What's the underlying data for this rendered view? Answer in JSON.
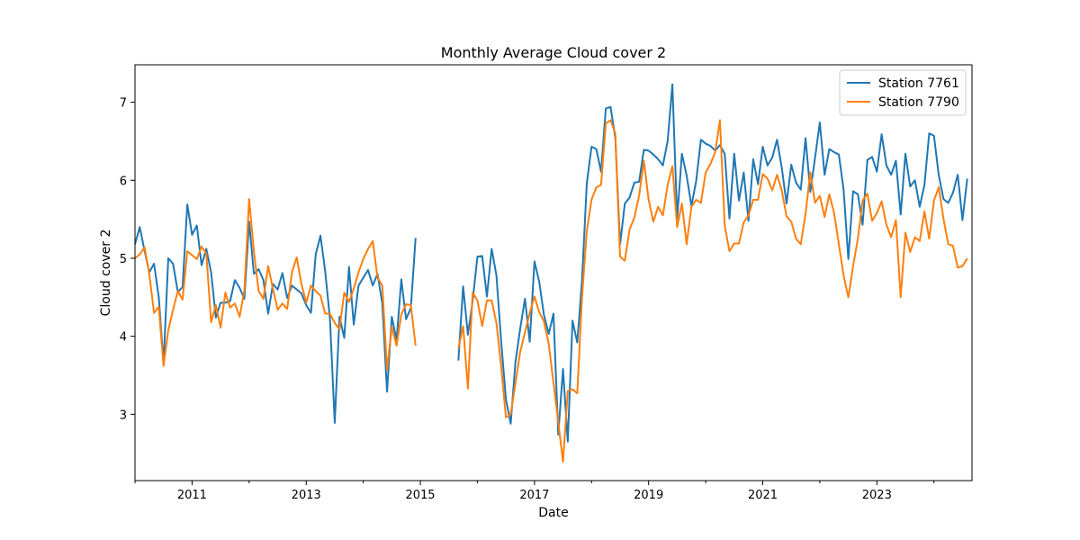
{
  "chart_data": {
    "type": "line",
    "title": "Monthly Average Cloud cover 2",
    "xlabel": "Date",
    "ylabel": "Cloud cover 2",
    "xlim": [
      "2010-01",
      "2024-09"
    ],
    "ylim": [
      2.15,
      7.48
    ],
    "x_ticks": [
      "2011",
      "2013",
      "2015",
      "2017",
      "2019",
      "2021",
      "2023"
    ],
    "y_ticks": [
      "3",
      "4",
      "5",
      "6",
      "7"
    ],
    "legend": {
      "position": "top-right"
    },
    "grid": false,
    "series": [
      {
        "name": "Station 7761",
        "color": "#1f77b4",
        "segments": [
          {
            "start": "2010-01",
            "values": [
              5.18,
              5.4,
              5.1,
              4.82,
              4.93,
              4.5,
              3.65,
              5.0,
              4.93,
              4.57,
              4.63,
              5.69,
              5.3,
              5.42,
              4.91,
              5.12,
              4.82,
              4.24,
              4.43,
              4.43,
              4.45,
              4.72,
              4.62,
              4.48,
              5.47,
              4.8,
              4.86,
              4.72,
              4.29,
              4.67,
              4.6,
              4.81,
              4.49,
              4.65,
              4.6,
              4.55,
              4.4,
              4.3,
              5.05,
              5.29,
              4.83,
              4.22,
              2.89,
              4.25,
              3.98,
              4.89,
              4.15,
              4.65,
              4.75,
              4.85,
              4.65,
              4.8,
              4.42,
              3.29,
              4.25,
              3.95,
              4.73,
              4.22,
              4.36,
              5.26
            ]
          },
          {
            "start": "2015-09",
            "values": [
              3.69,
              4.64,
              4.02,
              4.45,
              5.02,
              5.03,
              4.51,
              5.12,
              4.78,
              3.93,
              3.19,
              2.88,
              3.67,
              4.1,
              4.48,
              3.93,
              4.96,
              4.7,
              4.27,
              4.03,
              4.29,
              2.74,
              3.58,
              2.65,
              4.2,
              3.92,
              4.72,
              5.96,
              6.43,
              6.4,
              6.11,
              6.92,
              6.94,
              6.54,
              5.18,
              5.7,
              5.78,
              5.97,
              5.98,
              6.39,
              6.38,
              6.33,
              6.27,
              6.19,
              6.5,
              7.23,
              5.51,
              6.34,
              6.06,
              5.67,
              5.99,
              6.52,
              6.47,
              6.44,
              6.38,
              6.45,
              6.34,
              5.51,
              6.34,
              5.74,
              6.1,
              5.48,
              6.27,
              5.95,
              6.43,
              6.19,
              6.29,
              6.52,
              6.16,
              5.7,
              6.2,
              5.97,
              5.88,
              6.54,
              5.85,
              6.29,
              6.74,
              6.07,
              6.4,
              6.36,
              6.33,
              5.88,
              4.99,
              5.86,
              5.82,
              5.43,
              6.26,
              6.3,
              6.11,
              6.59,
              6.19,
              6.07,
              6.25,
              5.56,
              6.34,
              5.92,
              6.0,
              5.66,
              5.94,
              6.6,
              6.57,
              6.07,
              5.76,
              5.71,
              5.84,
              6.07,
              5.49,
              6.02
            ]
          }
        ]
      },
      {
        "name": "Station 7790",
        "color": "#ff7f0e",
        "segments": [
          {
            "start": "2010-01",
            "values": [
              5.0,
              5.05,
              5.14,
              4.8,
              4.3,
              4.38,
              3.62,
              4.08,
              4.34,
              4.58,
              4.47,
              5.09,
              5.04,
              4.99,
              5.15,
              5.06,
              4.18,
              4.4,
              4.11,
              4.56,
              4.37,
              4.42,
              4.25,
              4.59,
              5.76,
              5.09,
              4.58,
              4.48,
              4.9,
              4.61,
              4.34,
              4.42,
              4.35,
              4.82,
              5.01,
              4.67,
              4.43,
              4.65,
              4.58,
              4.52,
              4.29,
              4.29,
              4.17,
              4.09,
              4.56,
              4.44,
              4.61,
              4.82,
              4.99,
              5.12,
              5.22,
              4.75,
              4.65,
              3.57,
              4.12,
              3.88,
              4.28,
              4.41,
              4.4,
              3.88
            ]
          },
          {
            "start": "2015-09",
            "values": [
              3.84,
              4.13,
              3.33,
              4.56,
              4.46,
              4.13,
              4.46,
              4.46,
              4.17,
              3.61,
              2.96,
              3.0,
              3.4,
              3.8,
              4.05,
              4.3,
              4.51,
              4.31,
              4.19,
              3.9,
              3.4,
              2.9,
              2.39,
              3.3,
              3.32,
              3.27,
              4.5,
              5.35,
              5.75,
              5.91,
              5.94,
              6.73,
              6.77,
              6.6,
              5.02,
              4.97,
              5.37,
              5.52,
              5.8,
              6.25,
              5.75,
              5.47,
              5.66,
              5.55,
              5.94,
              6.18,
              5.4,
              5.7,
              5.18,
              5.66,
              5.75,
              5.71,
              6.1,
              6.21,
              6.36,
              6.77,
              5.42,
              5.09,
              5.19,
              5.19,
              5.46,
              5.55,
              5.75,
              5.75,
              6.08,
              6.02,
              5.87,
              6.07,
              5.87,
              5.54,
              5.47,
              5.25,
              5.18,
              5.57,
              6.1,
              5.71,
              5.8,
              5.53,
              5.82,
              5.58,
              5.18,
              4.78,
              4.5,
              4.9,
              5.25,
              5.74,
              5.83,
              5.48,
              5.58,
              5.73,
              5.43,
              5.27,
              5.49,
              4.5,
              5.33,
              5.08,
              5.27,
              5.22,
              5.6,
              5.25,
              5.74,
              5.91,
              5.51,
              5.18,
              5.16,
              4.88,
              4.9,
              5.0
            ]
          }
        ]
      }
    ]
  }
}
